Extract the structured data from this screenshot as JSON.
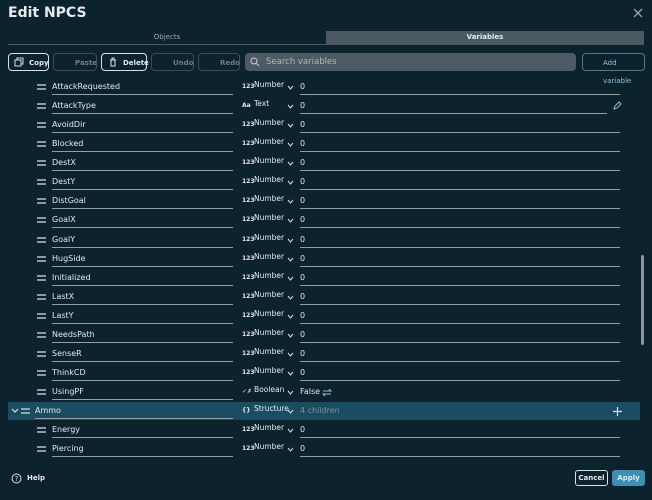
{
  "header": {
    "title": "Edit NPCS"
  },
  "tabs": [
    "Objects",
    "Variables"
  ],
  "toolbar": {
    "copy": "Copy",
    "paste": "Paste",
    "delete": "Delete",
    "undo": "Undo",
    "redo": "Redo",
    "search_placeholder": "Search variables",
    "add": "Add variable"
  },
  "variables": [
    {
      "name": "AttackRequested",
      "icon": "123",
      "type": "Number",
      "value": 0
    },
    {
      "name": "AttackType",
      "icon": "Aa",
      "type": "Text",
      "value": 0
    },
    {
      "name": "AvoidDir",
      "icon": "123",
      "type": "Number",
      "value": 0
    },
    {
      "name": "Blocked",
      "icon": "123",
      "type": "Number",
      "value": 0
    },
    {
      "name": "DestX",
      "icon": "123",
      "type": "Number",
      "value": 0
    },
    {
      "name": "DestY",
      "icon": "123",
      "type": "Number",
      "value": 0
    },
    {
      "name": "DistGoal",
      "icon": "123",
      "type": "Number",
      "value": 0
    },
    {
      "name": "GoalX",
      "icon": "123",
      "type": "Number",
      "value": 0
    },
    {
      "name": "GoalY",
      "icon": "123",
      "type": "Number",
      "value": 0
    },
    {
      "name": "HugSide",
      "icon": "123",
      "type": "Number",
      "value": 0
    },
    {
      "name": "Initialized",
      "icon": "123",
      "type": "Number",
      "value": 0
    },
    {
      "name": "LastX",
      "icon": "123",
      "type": "Number",
      "value": 0
    },
    {
      "name": "LastY",
      "icon": "123",
      "type": "Number",
      "value": 0
    },
    {
      "name": "NeedsPath",
      "icon": "123",
      "type": "Number",
      "value": 0
    },
    {
      "name": "SenseR",
      "icon": "123",
      "type": "Number",
      "value": 0
    },
    {
      "name": "ThinkCD",
      "icon": "123",
      "type": "Number",
      "value": 0
    },
    {
      "name": "UsingPF",
      "icon": "✓✗",
      "type": "Boolean",
      "value": "False"
    },
    {
      "name": "Ammo",
      "icon": "{}",
      "type": "Structure",
      "value": "4 children"
    },
    {
      "name": "Energy",
      "icon": "123",
      "type": "Number",
      "value": 0
    },
    {
      "name": "Piercing",
      "icon": "123",
      "type": "Number",
      "value": 0
    }
  ],
  "footer": {
    "help": "Help",
    "cancel": "Cancel",
    "apply": "Apply"
  }
}
